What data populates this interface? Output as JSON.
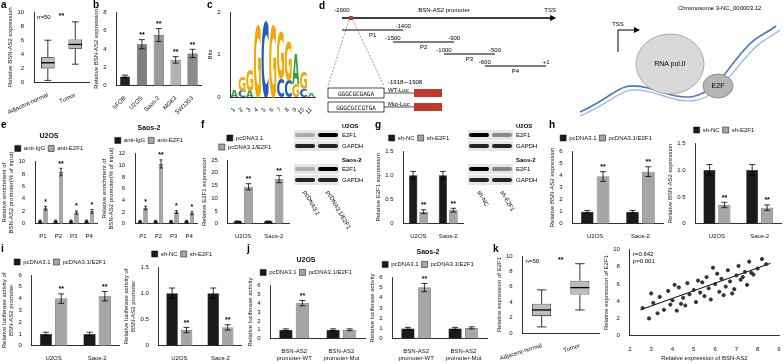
{
  "chart_data": [
    {
      "panel": "a",
      "type": "box",
      "categories": [
        "Adjacent-normal",
        "Tumor"
      ],
      "boxes": [
        {
          "min": 0.3,
          "q1": 2.0,
          "median": 2.8,
          "q3": 3.6,
          "max": 6.0
        },
        {
          "min": 2.6,
          "q1": 4.8,
          "median": 5.4,
          "q3": 6.1,
          "max": 8.6
        }
      ],
      "color": "#bdbdbd",
      "y_label": "Relative BSN-AS2 expression",
      "ylim": [
        0,
        10
      ],
      "yticks": [
        0,
        2,
        4,
        6,
        8,
        10
      ],
      "annotations": [
        "n=50"
      ],
      "significance": "**",
      "grid": false
    },
    {
      "panel": "b",
      "type": "bar",
      "categories": [
        "hFOB",
        "U2OS",
        "Saos-2",
        "MG63",
        "SW1353"
      ],
      "values": [
        1.0,
        4.5,
        5.5,
        2.8,
        3.5
      ],
      "error": [
        0.15,
        0.5,
        0.7,
        0.35,
        0.45
      ],
      "significance": [
        null,
        "**",
        "**",
        "**",
        "**"
      ],
      "colors": [
        "#262626",
        "#7f7f7f",
        "#999999",
        "#b3b3b3",
        "#8c8c8c"
      ],
      "y_label": "Relative BSN-AS2 expression",
      "ylim": [
        0,
        8
      ],
      "yticks": [
        0,
        2,
        4,
        6,
        8
      ],
      "grid": false
    },
    {
      "panel": "c",
      "type": "logo",
      "categories": [
        1,
        2,
        3,
        4,
        5,
        6,
        7,
        8,
        9,
        10,
        11
      ],
      "stacks": [
        [
          {
            "letter": "A",
            "bits": 0.15,
            "color": "#2e9e3e"
          }
        ],
        [
          {
            "letter": "C",
            "bits": 0.15,
            "color": "#1f5fbf"
          },
          {
            "letter": "G",
            "bits": 0.35,
            "color": "#f2a900"
          }
        ],
        [
          {
            "letter": "A",
            "bits": 0.15,
            "color": "#2e9e3e"
          },
          {
            "letter": "G",
            "bits": 0.5,
            "color": "#f2a900"
          }
        ],
        [
          {
            "letter": "G",
            "bits": 1.7,
            "color": "#f2a900"
          }
        ],
        [
          {
            "letter": "C",
            "bits": 1.8,
            "color": "#1f5fbf"
          }
        ],
        [
          {
            "letter": "G",
            "bits": 1.7,
            "color": "#f2a900"
          }
        ],
        [
          {
            "letter": "C",
            "bits": 0.45,
            "color": "#1f5fbf"
          },
          {
            "letter": "G",
            "bits": 1.1,
            "color": "#f2a900"
          }
        ],
        [
          {
            "letter": "C",
            "bits": 0.4,
            "color": "#1f5fbf"
          },
          {
            "letter": "G",
            "bits": 0.9,
            "color": "#f2a900"
          }
        ],
        [
          {
            "letter": "G",
            "bits": 0.3,
            "color": "#f2a900"
          },
          {
            "letter": "A",
            "bits": 0.7,
            "color": "#2e9e3e"
          }
        ],
        [
          {
            "letter": "C",
            "bits": 0.2,
            "color": "#1f5fbf"
          },
          {
            "letter": "G",
            "bits": 0.4,
            "color": "#f2a900"
          }
        ],
        [
          {
            "letter": "A",
            "bits": 0.1,
            "color": "#2e9e3e"
          }
        ]
      ],
      "y_label": "Bits",
      "ylim": [
        0,
        2
      ],
      "yticks": [
        0,
        1,
        2
      ],
      "grid": false
    },
    {
      "panel": "e",
      "type": "bar",
      "title": "U2OS",
      "categories": [
        "P1",
        "P2",
        "P3",
        "P4"
      ],
      "series": [
        {
          "name": "anti-IgG",
          "color": "#1a1a1a",
          "values": [
            0.5,
            0.5,
            0.5,
            0.5
          ],
          "error": [
            0.1,
            0.1,
            0.1,
            0.1
          ]
        },
        {
          "name": "anti-E2F1",
          "color": "#a6a6a6",
          "values": [
            2.5,
            8.3,
            1.8,
            2.0
          ],
          "error": [
            0.3,
            0.6,
            0.25,
            0.3
          ],
          "significance": [
            "*",
            "**",
            "*",
            "*"
          ]
        }
      ],
      "y_label": [
        "Relative enrichment of",
        "BSN-AS2 promoter(% of input)"
      ],
      "ylim": [
        0,
        10
      ],
      "yticks": [
        0,
        2,
        4,
        6,
        8,
        10
      ],
      "legend": "top",
      "grid": false
    },
    {
      "type": "bar",
      "title": "Saos-2",
      "categories": [
        "P1",
        "P2",
        "P3",
        "P4"
      ],
      "series": [
        {
          "name": "anti-IgG",
          "color": "#1a1a1a",
          "values": [
            0.5,
            0.5,
            0.5,
            0.5
          ],
          "error": [
            0.1,
            0.1,
            0.1,
            0.1
          ]
        },
        {
          "name": "anti-E2F1",
          "color": "#a6a6a6",
          "values": [
            2.7,
            10.2,
            2.0,
            1.8
          ],
          "error": [
            0.3,
            0.7,
            0.25,
            0.25
          ],
          "significance": [
            "*",
            "**",
            "*",
            "*"
          ]
        }
      ],
      "y_label": [
        "Relative enrichment of",
        "BSN-AS2 promoter(% of input)"
      ],
      "ylim": [
        0,
        12
      ],
      "yticks": [
        0,
        2,
        4,
        6,
        8,
        10,
        12
      ],
      "legend": "top",
      "grid": false
    },
    {
      "panel": "f",
      "type": "bar",
      "categories": [
        "U2OS",
        "Saos-2"
      ],
      "series": [
        {
          "name": "pcDNA3.1",
          "color": "#1a1a1a",
          "values": [
            1.0,
            1.0
          ],
          "error": [
            0.1,
            0.1
          ]
        },
        {
          "name": "pcDNA3.1/E2F1",
          "color": "#a6a6a6",
          "values": [
            14.5,
            17.5
          ],
          "error": [
            1.2,
            1.4
          ],
          "significance": [
            "**",
            "**"
          ]
        }
      ],
      "y_label": "Relative E2F1 expression",
      "ylim": [
        0,
        25
      ],
      "yticks": [
        0,
        5,
        10,
        15,
        20,
        25
      ],
      "legend": "top",
      "grid": false
    },
    {
      "panel": "g",
      "type": "bar",
      "categories": [
        "U2OS",
        "Saos-2"
      ],
      "series": [
        {
          "name": "sh-NC",
          "color": "#1a1a1a",
          "values": [
            1.0,
            1.0
          ],
          "error": [
            0.08,
            0.08
          ]
        },
        {
          "name": "sh-E2F1",
          "color": "#a6a6a6",
          "values": [
            0.25,
            0.28
          ],
          "error": [
            0.04,
            0.04
          ],
          "significance": [
            "**",
            "**"
          ]
        }
      ],
      "y_label": "Relative E2F1 expression",
      "ylim": [
        0,
        1.5
      ],
      "yticks": [
        0,
        0.5,
        {
          "value": 1,
          "label": "1.0"
        },
        1.5
      ],
      "legend": "top",
      "grid": false
    },
    {
      "panel": "h",
      "type": "bar",
      "categories": [
        "U2OS",
        "Saos-2"
      ],
      "series": [
        {
          "name": "pcDNA3.1",
          "color": "#1a1a1a",
          "values": [
            1.0,
            1.0
          ],
          "error": [
            0.1,
            0.1
          ]
        },
        {
          "name": "pcDNA3.1/E2F1",
          "color": "#a6a6a6",
          "values": [
            3.9,
            4.3
          ],
          "error": [
            0.4,
            0.4
          ],
          "significance": [
            "**",
            "**"
          ]
        }
      ],
      "y_label": "Relative BSN-AS2 expression",
      "ylim": [
        0,
        6
      ],
      "yticks": [
        0,
        1,
        2,
        3,
        4,
        5,
        6
      ],
      "legend": "top",
      "grid": false
    },
    {
      "type": "bar",
      "categories": [
        "U2OS",
        "Saos-2"
      ],
      "series": [
        {
          "name": "sh-NC",
          "color": "#1a1a1a",
          "values": [
            1.0,
            1.0
          ],
          "error": [
            0.1,
            0.1
          ]
        },
        {
          "name": "sh-E2F1",
          "color": "#a6a6a6",
          "values": [
            0.35,
            0.3
          ],
          "error": [
            0.05,
            0.05
          ],
          "significance": [
            "**",
            "**"
          ]
        }
      ],
      "y_label": "Relative BSN-AS2 expression",
      "ylim": [
        0,
        1.5
      ],
      "yticks": [
        0,
        0.5,
        {
          "value": 1,
          "label": "1.0"
        },
        1.5
      ],
      "legend": "top",
      "grid": false
    },
    {
      "panel": "i",
      "type": "bar",
      "categories": [
        "U2OS",
        "Saos-2"
      ],
      "series": [
        {
          "name": "pcDNA3.1",
          "color": "#1a1a1a",
          "values": [
            1.0,
            1.0
          ],
          "error": [
            0.15,
            0.15
          ]
        },
        {
          "name": "pcDNA3.1/E2F1",
          "color": "#a6a6a6",
          "values": [
            4.0,
            4.2
          ],
          "error": [
            0.4,
            0.4
          ],
          "significance": [
            "**",
            "**"
          ]
        }
      ],
      "y_label": [
        "Relative luciferase activity of",
        "BSN-AS2 promoter"
      ],
      "ylim": [
        0,
        6
      ],
      "yticks": [
        0,
        1,
        2,
        3,
        4,
        5,
        6
      ],
      "legend": "top",
      "grid": false
    },
    {
      "type": "bar",
      "categories": [
        "U2OS",
        "Saos-2"
      ],
      "series": [
        {
          "name": "sh-NC",
          "color": "#1a1a1a",
          "values": [
            1.0,
            1.0
          ],
          "error": [
            0.1,
            0.1
          ]
        },
        {
          "name": "sh-E2F1",
          "color": "#a6a6a6",
          "values": [
            0.3,
            0.35
          ],
          "error": [
            0.05,
            0.05
          ],
          "significance": [
            "**",
            "**"
          ]
        }
      ],
      "y_label": [
        "Relative luciferase activity of",
        "BSN-AS2 promoter"
      ],
      "ylim": [
        0,
        1.5
      ],
      "yticks": [
        0,
        0.5,
        {
          "value": 1,
          "label": "1.0"
        },
        1.5
      ],
      "legend": "top",
      "grid": false
    },
    {
      "panel": "j",
      "type": "bar",
      "title": "U2OS",
      "categories": [
        "BSN-AS2 promoter-WT",
        "BSN-AS2 promoter-Mut"
      ],
      "series": [
        {
          "name": "pcDNA3.1",
          "color": "#1a1a1a",
          "values": [
            1.0,
            1.0
          ],
          "error": [
            0.1,
            0.1
          ]
        },
        {
          "name": "pcDNA3.1/E2F1",
          "color": "#a6a6a6",
          "values": [
            4.0,
            1.0
          ],
          "error": [
            0.3,
            0.1
          ],
          "significance": [
            "**",
            null
          ]
        }
      ],
      "y_label": "Relative luciferase activity",
      "ylim": [
        0,
        6
      ],
      "yticks": [
        0,
        1,
        2,
        3,
        4,
        5,
        6
      ],
      "legend": "top",
      "grid": false
    },
    {
      "type": "bar",
      "title": "Saos-2",
      "categories": [
        "BSN-AS2 promoter-WT",
        "BSN-AS2 promoter-Mut"
      ],
      "series": [
        {
          "name": "pcDNA3.1",
          "color": "#1a1a1a",
          "values": [
            1.0,
            1.0
          ],
          "error": [
            0.1,
            0.1
          ]
        },
        {
          "name": "pcDNA3.1/E2F1",
          "color": "#a6a6a6",
          "values": [
            5.0,
            1.05
          ],
          "error": [
            0.4,
            0.1
          ],
          "significance": [
            "**",
            null
          ]
        }
      ],
      "y_label": "Relative luciferase activity",
      "ylim": [
        0,
        6
      ],
      "yticks": [
        0,
        1,
        2,
        3,
        4,
        5,
        6
      ],
      "legend": "top",
      "grid": false
    },
    {
      "panel": "k",
      "type": "box",
      "categories": [
        "Adjacent-normal",
        "Tumor"
      ],
      "boxes": [
        {
          "min": 0.8,
          "q1": 2.2,
          "median": 3.0,
          "q3": 3.8,
          "max": 5.6
        },
        {
          "min": 3.0,
          "q1": 5.0,
          "median": 5.9,
          "q3": 6.8,
          "max": 9.0
        }
      ],
      "color": "#bdbdbd",
      "y_label": "Relative expression of E2F1",
      "ylim": [
        0,
        10
      ],
      "yticks": [
        0,
        2,
        4,
        6,
        8,
        10
      ],
      "annotations": [
        "n=50"
      ],
      "significance": "**",
      "grid": false
    },
    {
      "type": "scatter",
      "x": [
        2.6,
        2.9,
        3.1,
        3.3,
        3.4,
        3.6,
        3.8,
        3.9,
        4.0,
        4.2,
        4.3,
        4.5,
        4.6,
        4.7,
        4.8,
        5.0,
        5.1,
        5.2,
        5.3,
        5.5,
        5.6,
        5.7,
        5.8,
        6.0,
        6.1,
        6.2,
        6.3,
        6.5,
        6.6,
        6.7,
        6.8,
        7.0,
        7.1,
        7.2,
        7.4,
        7.5,
        7.6,
        7.8,
        8.0,
        8.2,
        8.4,
        3.0,
        4.4,
        5.9,
        6.9,
        7.3,
        5.4,
        4.1,
        6.4,
        7.7
      ],
      "y": [
        3.2,
        2.0,
        3.8,
        2.6,
        4.5,
        3.0,
        5.2,
        3.6,
        4.1,
        2.9,
        5.6,
        4.4,
        3.5,
        6.1,
        4.8,
        5.3,
        3.9,
        6.4,
        5.0,
        4.6,
        6.8,
        5.5,
        4.2,
        6.0,
        7.2,
        5.1,
        6.6,
        5.7,
        7.6,
        6.3,
        4.9,
        7.0,
        8.1,
        6.5,
        7.4,
        5.9,
        8.6,
        7.1,
        7.8,
        8.9,
        8.3,
        4.9,
        3.7,
        7.9,
        5.4,
        6.8,
        6.2,
        5.9,
        4.7,
        7.3
      ],
      "trend_line": {
        "x": [
          2.5,
          8.6
        ],
        "y": [
          3.0,
          8.4
        ]
      },
      "x_label": "Relative expression of BSN-AS2",
      "y_label": "Relative expression of E2F1",
      "xlim": [
        2,
        9
      ],
      "xticks": [
        2,
        3,
        4,
        5,
        6,
        7,
        8,
        9
      ],
      "ylim": [
        0,
        10
      ],
      "yticks": [
        0,
        2,
        4,
        6,
        8,
        10
      ],
      "annotations": [
        "r=0.642",
        "p=0.001"
      ],
      "marker": "circle",
      "color": "#333333",
      "grid": false
    }
  ],
  "diagram": {
    "panel": "d",
    "promoter": {
      "start_label": "-2000",
      "name": "BSN-AS2 promoter",
      "tss": "TSS"
    },
    "fragments": [
      {
        "name": "P1",
        "start": -2000,
        "end": -1400,
        "labels": [
          "-1400"
        ]
      },
      {
        "name": "P2",
        "start": -1500,
        "end": -900,
        "labels": [
          "-1500",
          "-900"
        ]
      },
      {
        "name": "P3",
        "start": -1000,
        "end": -500,
        "labels": [
          "-1000",
          "-500"
        ]
      },
      {
        "name": "P4",
        "start": -600,
        "end": 1,
        "labels": [
          "-600",
          "+1"
        ]
      }
    ],
    "site": {
      "label": "-1918~-1908",
      "position": -1913
    },
    "constructs": [
      {
        "sequence": "GGGCGCGAGA",
        "name": "WT-Luc"
      },
      {
        "sequence": "GGGCGCCGTGA",
        "name": "Mut-Luc"
      }
    ],
    "chromosome": {
      "label": "Chromosome 3-NC_000003.12",
      "tss": "TSS",
      "polymerase": "RNA pol.II",
      "factor": "E2F"
    }
  },
  "blots": [
    {
      "groups": [
        {
          "name": "U2OS",
          "rows": [
            "E2F1",
            "GAPDH"
          ]
        },
        {
          "name": "Saos-2",
          "rows": [
            "E2F1",
            "GAPDH"
          ]
        }
      ],
      "lanes": [
        "pcDNA3.1",
        "pcDNA3.1/E2F1"
      ]
    },
    {
      "groups": [
        {
          "name": "U2OS",
          "rows": [
            "E2F1",
            "GAPDH"
          ]
        },
        {
          "name": "Saos-2",
          "rows": [
            "E2F1",
            "GAPDH"
          ]
        }
      ],
      "lanes": [
        "sh-NC",
        "sh-E2F1"
      ]
    }
  ]
}
